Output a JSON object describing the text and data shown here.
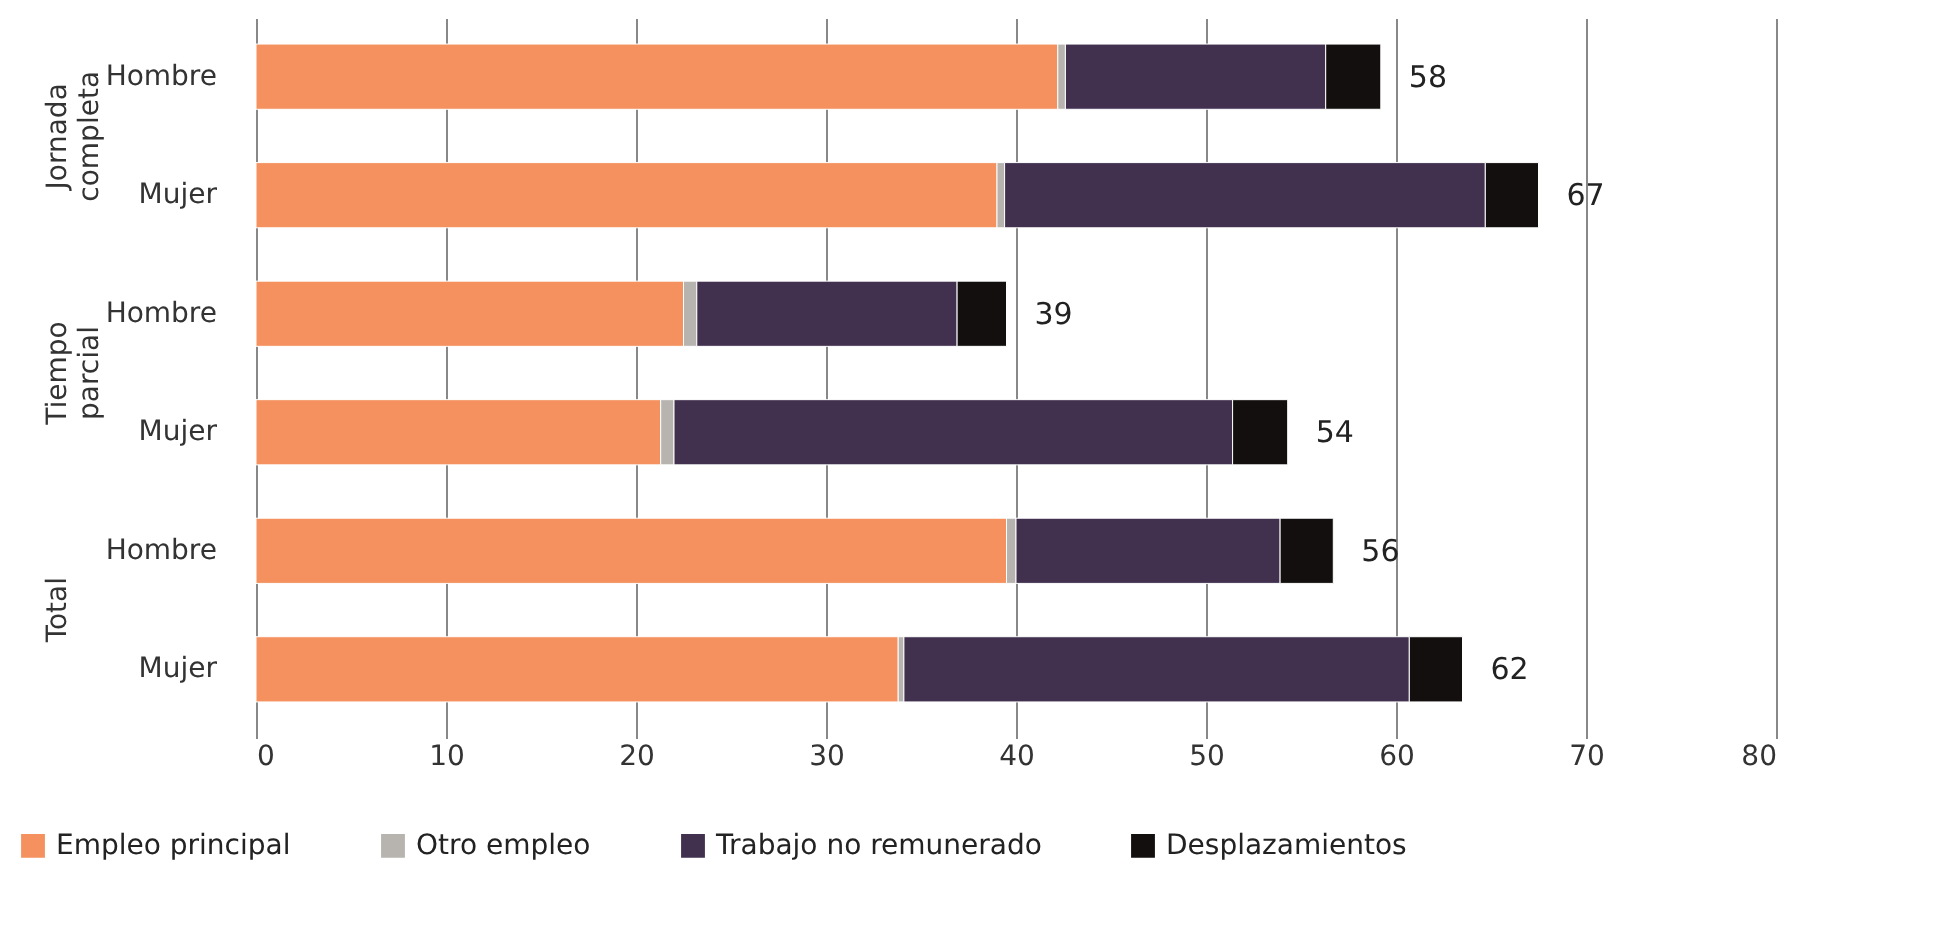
{
  "chart_data": {
    "type": "bar",
    "orientation": "horizontal",
    "stacked": true,
    "categories": [
      "Hombre",
      "Mujer",
      "Hombre",
      "Mujer",
      "Hombre",
      "Mujer"
    ],
    "annotations": [
      "Jornada completa",
      "Tiempo parcial",
      "Total"
    ],
    "series": [
      {
        "name": "Empleo principal",
        "color": "#f4915e",
        "values": [
          42.2,
          39.0,
          22.5,
          21.3,
          39.5,
          33.8
        ]
      },
      {
        "name": "Otro empleo",
        "color": "#b7b4b0",
        "values": [
          0.4,
          0.4,
          0.7,
          0.7,
          0.5,
          0.3
        ]
      },
      {
        "name": "Trabajo no remunerado",
        "color": "#41304e",
        "values": [
          13.7,
          25.3,
          13.7,
          29.4,
          13.9,
          26.6
        ]
      },
      {
        "name": "Desplazamientos",
        "color": "#130f0f",
        "values": [
          2.9,
          2.8,
          2.6,
          2.9,
          2.8,
          2.8
        ]
      }
    ],
    "totals": [
      "58",
      "67",
      "39",
      "54",
      "56",
      "62"
    ],
    "xlim": [
      0,
      80
    ],
    "xticks": [
      0,
      10,
      20,
      30,
      40,
      50,
      60,
      70,
      80
    ],
    "grid": "x",
    "legend": "bottom"
  }
}
